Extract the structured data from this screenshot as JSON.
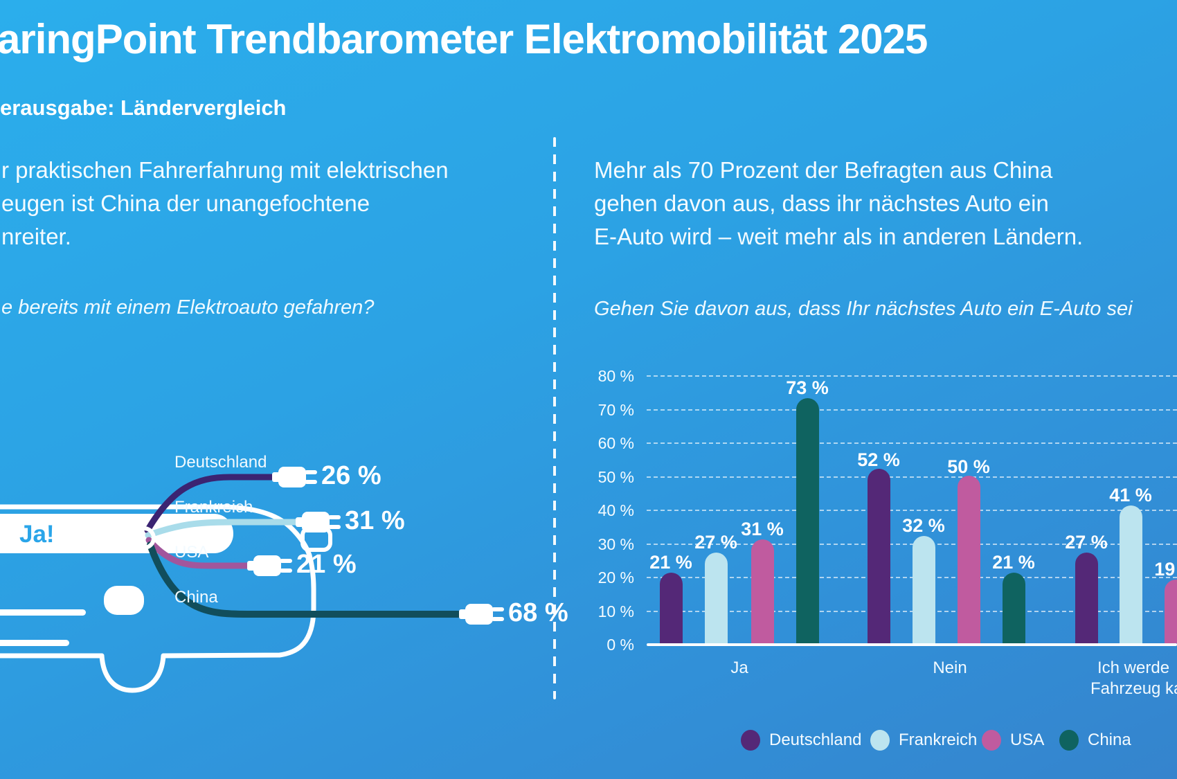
{
  "title": "aringPoint Trendbarometer Elektromobilität 2025",
  "subtitle": "erausgabe: Ländervergleich",
  "left_panel": {
    "paragraph_lines": [
      "r praktischen Fahrerfahrung mit elektrischen",
      "eugen ist China der unangefochtene",
      "nreiter."
    ],
    "question": "e bereits mit einem Elektroauto gefahren?",
    "car_label": "Ja!"
  },
  "right_panel": {
    "paragraph_lines": [
      "Mehr als 70 Prozent der Befragten aus China",
      "gehen davon aus, dass ihr nächstes Auto ein",
      "E-Auto wird – weit mehr als in anderen Ländern."
    ],
    "question": "Gehen Sie davon aus, dass Ihr nächstes Auto ein E-Auto sei"
  },
  "chart_data": [
    {
      "type": "bar",
      "orientation": "horizontal-pictogram",
      "annotation": "Ja!",
      "categories": [
        "Deutschland",
        "Frankreich",
        "USA",
        "China"
      ],
      "values": [
        26,
        31,
        21,
        68
      ],
      "value_labels": [
        "26 %",
        "31 %",
        "21 %",
        "68 %"
      ]
    },
    {
      "type": "bar",
      "grouped": true,
      "categories": [
        "Ja",
        "Nein",
        "Ich werde / Fahrzeug ka"
      ],
      "x_label_lines": [
        [
          "Ja"
        ],
        [
          "Nein"
        ],
        [
          "Ich werde",
          "Fahrzeug ka"
        ]
      ],
      "series": [
        {
          "name": "Deutschland",
          "color": "#542877",
          "values": [
            21,
            52,
            27
          ]
        },
        {
          "name": "Frankreich",
          "color": "#BCE4EF",
          "values": [
            27,
            32,
            41
          ]
        },
        {
          "name": "USA",
          "color": "#C05B9F",
          "values": [
            31,
            50,
            19
          ]
        },
        {
          "name": "China",
          "color": "#0F6360",
          "values": [
            73,
            21,
            null
          ]
        }
      ],
      "value_labels": [
        "21 %",
        "27 %",
        "31 %",
        "73 %",
        "52 %",
        "32 %",
        "50 %",
        "21 %",
        "27 %",
        "41 %",
        "19 %"
      ],
      "ytick_labels": [
        "80 %",
        "70 %",
        "60 %",
        "50 %",
        "40 %",
        "30 %",
        "20 %",
        "10 %",
        "0 %"
      ],
      "ylim": [
        0,
        80
      ],
      "grid": "dashed-horizontal",
      "legend_position": "bottom"
    }
  ],
  "colors": {
    "background_top": "#2BAEEC",
    "background_bottom": "#3584CD",
    "text": "#FFFFFF",
    "ja_label": "#2AA5E9",
    "deutschland": "#542877",
    "frankreich": "#BCE4EF",
    "usa": "#C05B9F",
    "china": "#0F6360",
    "cable_deutschland": "#3B2472",
    "cable_frankreich": "#A9DCEA",
    "cable_usa": "#A2569C",
    "cable_china": "#114E5C",
    "gridline": "rgba(255,255,255,0.62)",
    "axis_line": "#FFFFFF"
  }
}
